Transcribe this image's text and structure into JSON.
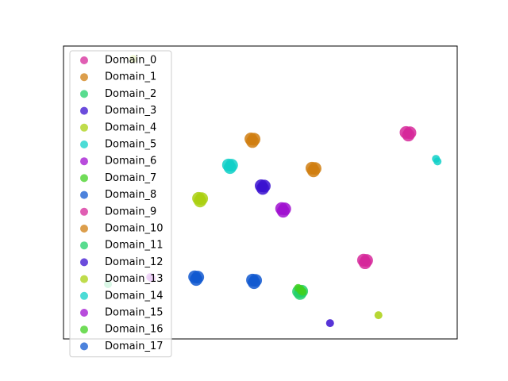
{
  "chart_data": {
    "type": "scatter",
    "xlim": [
      0,
      100
    ],
    "ylim": [
      0,
      100
    ],
    "series": [
      {
        "name": "Domain_0",
        "color": "#d6289a",
        "x": [
          87.0,
          88.0,
          87.6
        ],
        "y": [
          70.5,
          70.4,
          69.6
        ]
      },
      {
        "name": "Domain_1",
        "color": "#d07e10",
        "x": [
          47.6,
          48.4,
          48.0
        ],
        "y": [
          68.3,
          68.2,
          67.4
        ]
      },
      {
        "name": "Domain_2",
        "color": "#22d06a",
        "x": [
          59.7,
          60.5,
          60.1
        ],
        "y": [
          16.2,
          16.3,
          15.5
        ]
      },
      {
        "name": "Domain_3",
        "color": "#3a10d0",
        "x": [
          50.2,
          51.0,
          50.6
        ],
        "y": [
          52.3,
          52.2,
          51.4
        ]
      },
      {
        "name": "Domain_4",
        "color": "#aad010",
        "x": [
          34.3,
          35.1,
          34.7
        ],
        "y": [
          48.0,
          47.9,
          47.1
        ]
      },
      {
        "name": "Domain_5",
        "color": "#10d0c8",
        "x": [
          41.9,
          42.7,
          42.3
        ],
        "y": [
          59.4,
          59.3,
          58.5
        ]
      },
      {
        "name": "Domain_6",
        "color": "#a010d0",
        "x": [
          55.4,
          56.2,
          55.8
        ],
        "y": [
          44.5,
          44.4,
          43.6
        ]
      },
      {
        "name": "Domain_7",
        "color": "#40d020",
        "x": [
          59.6,
          60.2
        ],
        "y": [
          17.4,
          17.0
        ]
      },
      {
        "name": "Domain_8",
        "color": "#1058d0",
        "x": [
          33.3,
          34.1,
          33.7
        ],
        "y": [
          21.2,
          21.1,
          20.3
        ]
      },
      {
        "name": "Domain_9",
        "color": "#d6289a",
        "x": [
          76.2,
          77.0,
          76.6
        ],
        "y": [
          26.9,
          26.8,
          26.0
        ]
      },
      {
        "name": "Domain_10",
        "color": "#d07e10",
        "x": [
          63.1,
          63.9,
          63.5
        ],
        "y": [
          58.3,
          58.2,
          57.4
        ]
      },
      {
        "name": "Domain_11",
        "color": "#22d06a",
        "x": [
          11.3
        ],
        "y": [
          18.7
        ]
      },
      {
        "name": "Domain_12",
        "color": "#3a10d0",
        "x": [
          67.7
        ],
        "y": [
          5.4
        ]
      },
      {
        "name": "Domain_13",
        "color": "#aad010",
        "x": [
          80.0,
          17.7
        ],
        "y": [
          8.1,
          95.6
        ]
      },
      {
        "name": "Domain_14",
        "color": "#10d0c8",
        "x": [
          94.6,
          95.0
        ],
        "y": [
          61.5,
          60.6
        ]
      },
      {
        "name": "Domain_15",
        "color": "#a010d0",
        "x": [
          22.0,
          22.4
        ],
        "y": [
          21.1,
          20.7
        ]
      },
      {
        "name": "Domain_16",
        "color": "#40d020",
        "x": [
          60.3,
          60.8
        ],
        "y": [
          16.4,
          16.1
        ]
      },
      {
        "name": "Domain_17",
        "color": "#1058d0",
        "x": [
          48.0,
          48.8,
          48.4
        ],
        "y": [
          20.1,
          20.0,
          19.2
        ]
      }
    ]
  }
}
